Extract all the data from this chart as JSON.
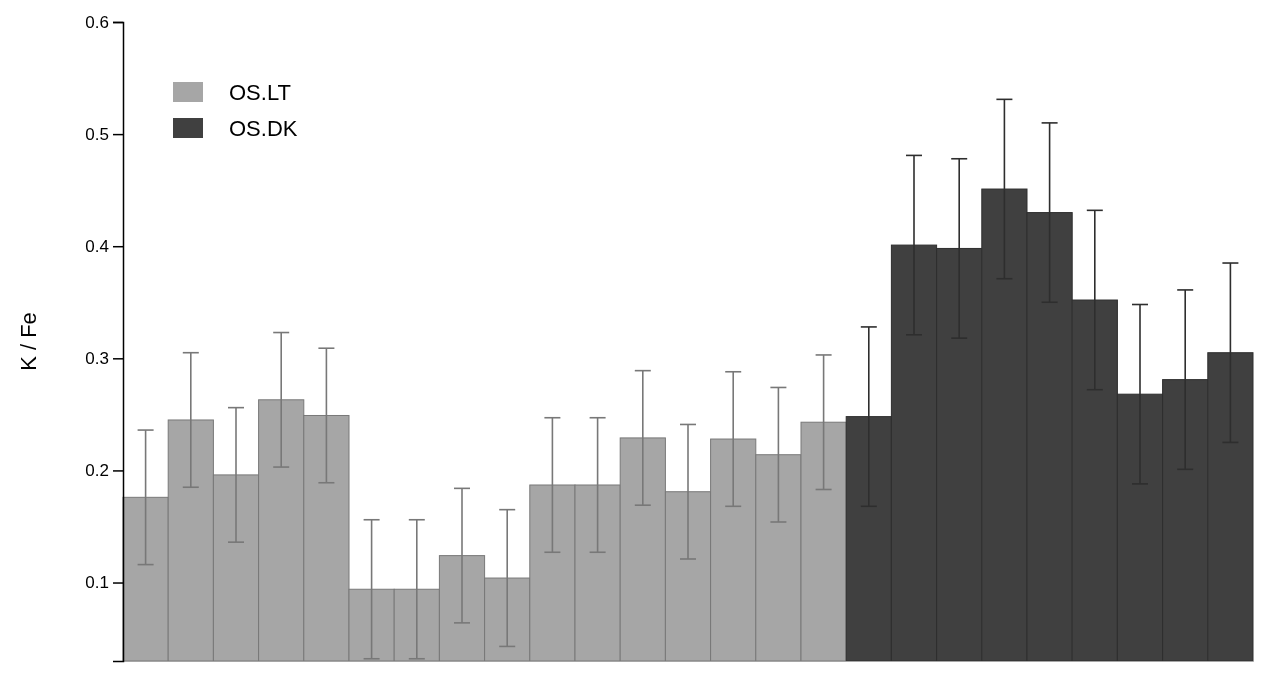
{
  "chart_data": {
    "type": "bar",
    "ylabel": "K / Fe",
    "categories": [
      null,
      null,
      null,
      null,
      null,
      null,
      null,
      null,
      null,
      null,
      null,
      null,
      null,
      null,
      null,
      null,
      null,
      null,
      null,
      null,
      null,
      null,
      null,
      null,
      null
    ],
    "series": [
      {
        "name": "OS.LT",
        "color": "#a6a6a6",
        "values": [
          0.176,
          0.245,
          0.196,
          0.263,
          0.249,
          0.094,
          0.094,
          0.124,
          0.104,
          0.187,
          0.187,
          0.229,
          0.181,
          0.228,
          0.214,
          0.243,
          null,
          null,
          null,
          null,
          null,
          null,
          null,
          null,
          null
        ],
        "errors": [
          0.06,
          0.06,
          0.06,
          0.06,
          0.06,
          0.062,
          0.062,
          0.06,
          0.061,
          0.06,
          0.06,
          0.06,
          0.06,
          0.06,
          0.06,
          0.06,
          null,
          null,
          null,
          null,
          null,
          null,
          null,
          null,
          null
        ]
      },
      {
        "name": "OS.DK",
        "color": "#404040",
        "values": [
          null,
          null,
          null,
          null,
          null,
          null,
          null,
          null,
          null,
          null,
          null,
          null,
          null,
          null,
          null,
          null,
          0.248,
          0.401,
          0.398,
          0.451,
          0.43,
          0.352,
          0.268,
          0.281,
          0.305
        ],
        "errors": [
          null,
          null,
          null,
          null,
          null,
          null,
          null,
          null,
          null,
          null,
          null,
          null,
          null,
          null,
          null,
          null,
          0.08,
          0.08,
          0.08,
          0.08,
          0.08,
          0.08,
          0.08,
          0.08,
          0.08
        ]
      }
    ],
    "ylim": [
      0.03,
      0.6
    ],
    "yticks": [
      0.1,
      0.2,
      0.3,
      0.4,
      0.5,
      0.6
    ],
    "legend": "top left"
  }
}
